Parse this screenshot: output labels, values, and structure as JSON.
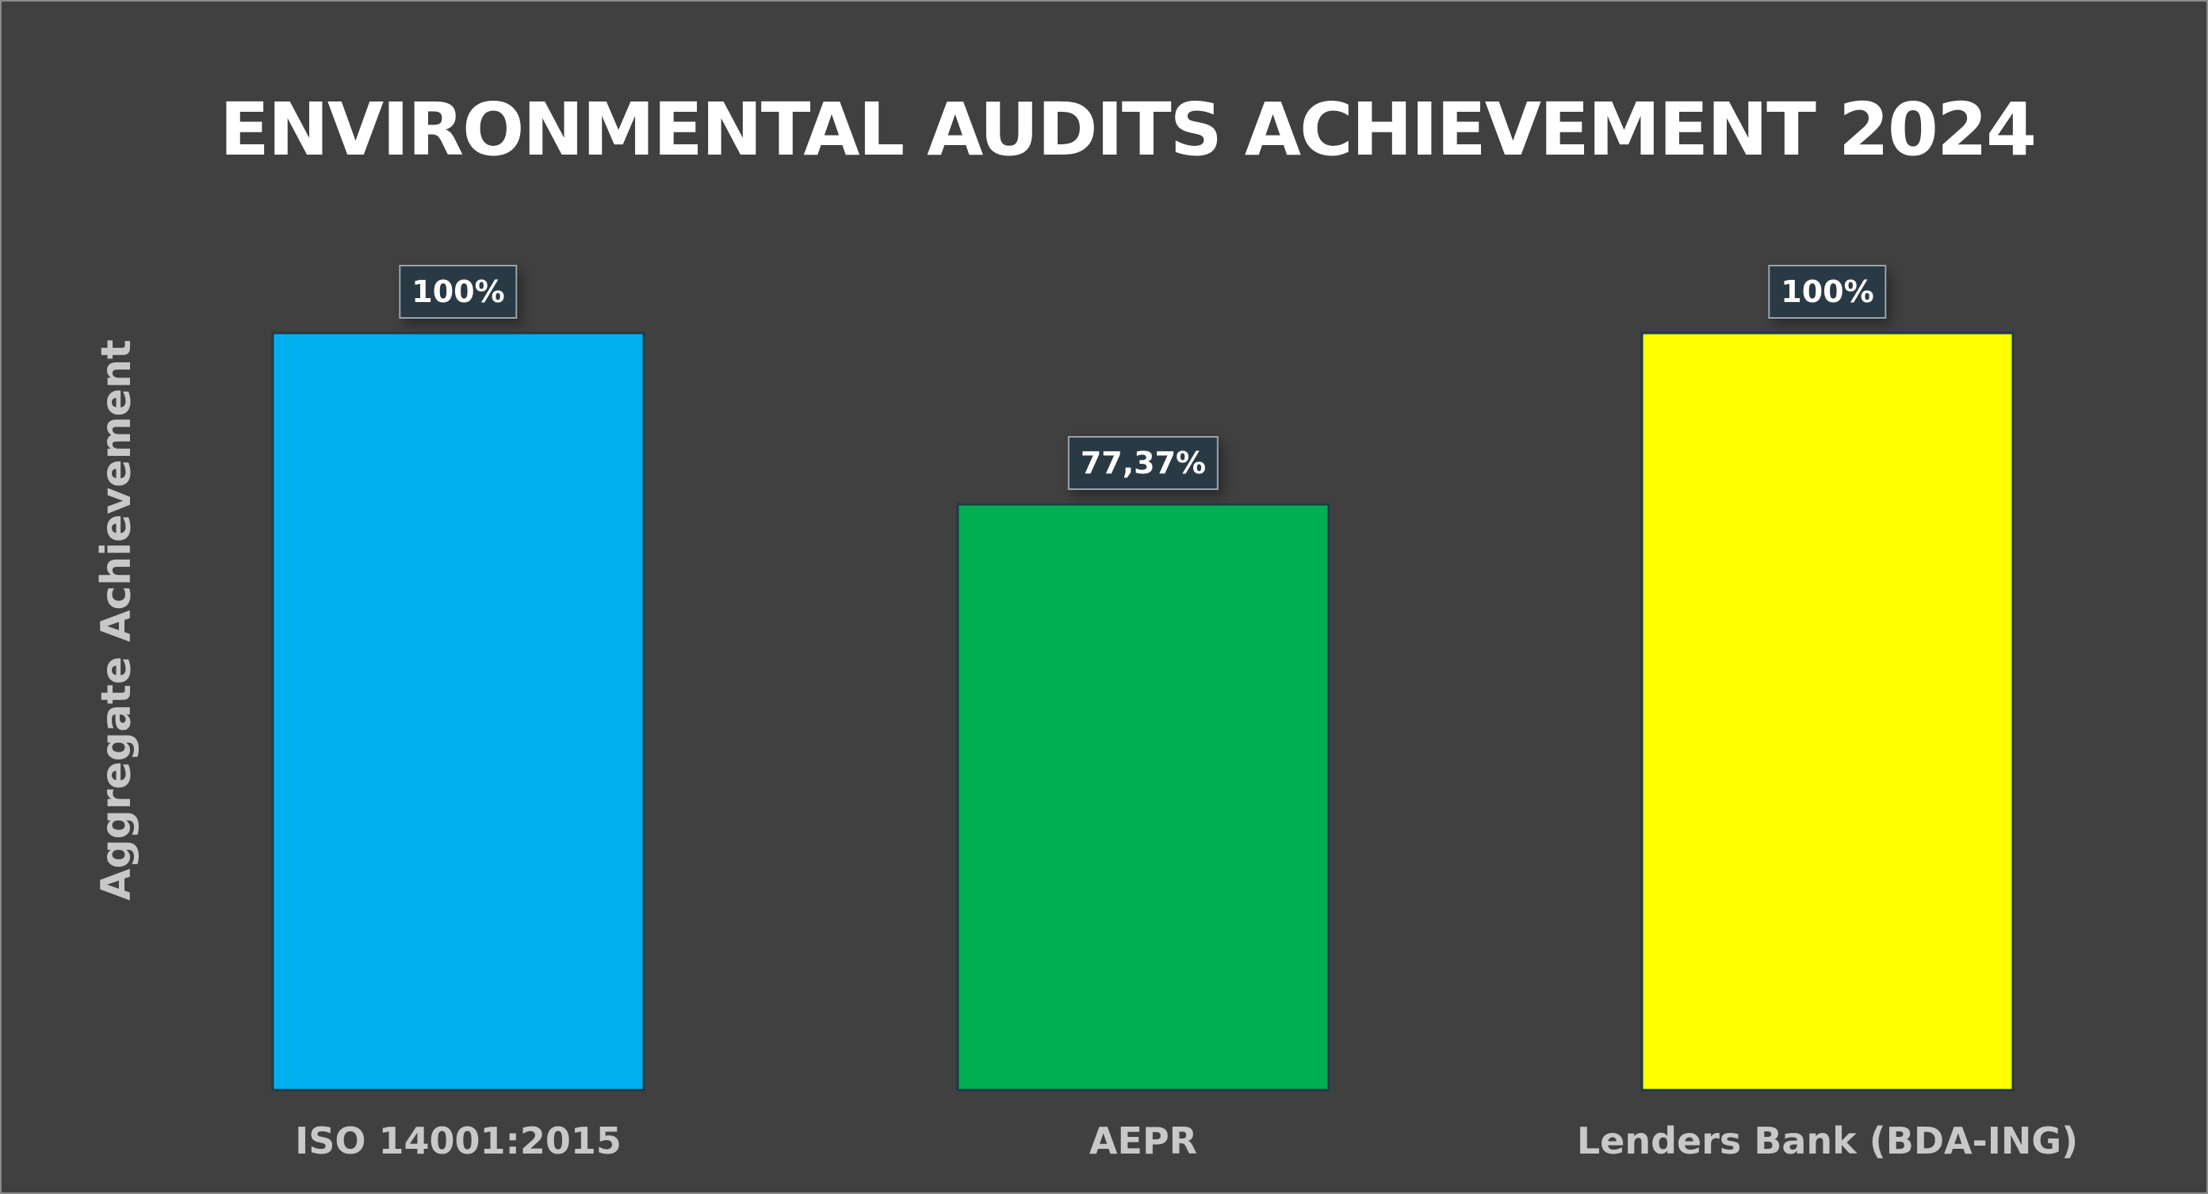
{
  "chart_data": {
    "type": "bar",
    "title": "ENVIRONMENTAL AUDITS ACHIEVEMENT 2024",
    "xlabel": "",
    "ylabel": "Aggregate Achievement",
    "categories": [
      "ISO 14001:2015",
      "AEPR",
      "Lenders Bank (BDA-ING)"
    ],
    "values": [
      100,
      77.37,
      100
    ],
    "data_labels": [
      "100%",
      "77,37%",
      "100%"
    ],
    "colors": [
      "#00b0f0",
      "#00b050",
      "#ffff00"
    ],
    "ylim": [
      0,
      100
    ],
    "grid": false,
    "legend": "none"
  },
  "colors": {
    "background": "#404040",
    "title": "#ffffff",
    "axis_text": "#c8c8c8",
    "label_box": "#2a3a45"
  }
}
